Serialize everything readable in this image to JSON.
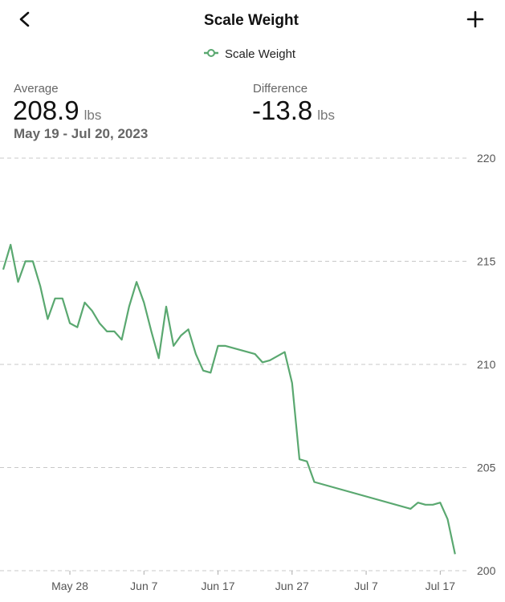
{
  "header": {
    "title": "Scale Weight"
  },
  "stats": {
    "average_label": "Average",
    "average_value": "208.9",
    "average_unit": "lbs",
    "range": "May 19 - Jul 20, 2023",
    "difference_label": "Difference",
    "difference_value": "-13.8",
    "difference_unit": "lbs"
  },
  "chart_data": {
    "type": "line",
    "xlim": [
      "2023-05-19",
      "2023-07-20"
    ],
    "xticks": [
      {
        "value": "2023-05-28",
        "label": "May 28"
      },
      {
        "value": "2023-06-07",
        "label": "Jun 7"
      },
      {
        "value": "2023-06-17",
        "label": "Jun 17"
      },
      {
        "value": "2023-06-27",
        "label": "Jun 27"
      },
      {
        "value": "2023-07-07",
        "label": "Jul 7"
      },
      {
        "value": "2023-07-17",
        "label": "Jul 17"
      }
    ],
    "ylim": [
      200,
      220
    ],
    "yticks": [
      200,
      205,
      210,
      215,
      220
    ],
    "grid": true,
    "x": [
      "2023-05-19",
      "2023-05-20",
      "2023-05-21",
      "2023-05-22",
      "2023-05-23",
      "2023-05-24",
      "2023-05-25",
      "2023-05-26",
      "2023-05-27",
      "2023-05-28",
      "2023-05-29",
      "2023-05-30",
      "2023-05-31",
      "2023-06-01",
      "2023-06-02",
      "2023-06-03",
      "2023-06-04",
      "2023-06-05",
      "2023-06-06",
      "2023-06-07",
      "2023-06-08",
      "2023-06-09",
      "2023-06-10",
      "2023-06-11",
      "2023-06-12",
      "2023-06-13",
      "2023-06-14",
      "2023-06-15",
      "2023-06-16",
      "2023-06-17",
      "2023-06-18",
      "2023-06-22",
      "2023-06-23",
      "2023-06-24",
      "2023-06-26",
      "2023-06-27",
      "2023-06-28",
      "2023-06-29",
      "2023-06-30",
      "2023-07-13",
      "2023-07-14",
      "2023-07-15",
      "2023-07-16",
      "2023-07-17",
      "2023-07-18",
      "2023-07-19"
    ],
    "series": [
      {
        "name": "Scale Weight",
        "color": "#5aa870",
        "values": [
          214.6,
          215.8,
          214.0,
          215.0,
          215.0,
          213.8,
          212.2,
          213.2,
          213.2,
          212.0,
          211.8,
          213.0,
          212.6,
          212.0,
          211.6,
          211.6,
          211.2,
          212.8,
          214.0,
          213.0,
          211.6,
          210.3,
          212.8,
          210.9,
          211.4,
          211.7,
          210.5,
          209.7,
          209.6,
          210.9,
          210.9,
          210.5,
          210.1,
          210.2,
          210.6,
          209.1,
          205.4,
          205.3,
          204.3,
          203.0,
          203.3,
          203.2,
          203.2,
          203.3,
          202.5,
          200.8
        ]
      }
    ]
  }
}
